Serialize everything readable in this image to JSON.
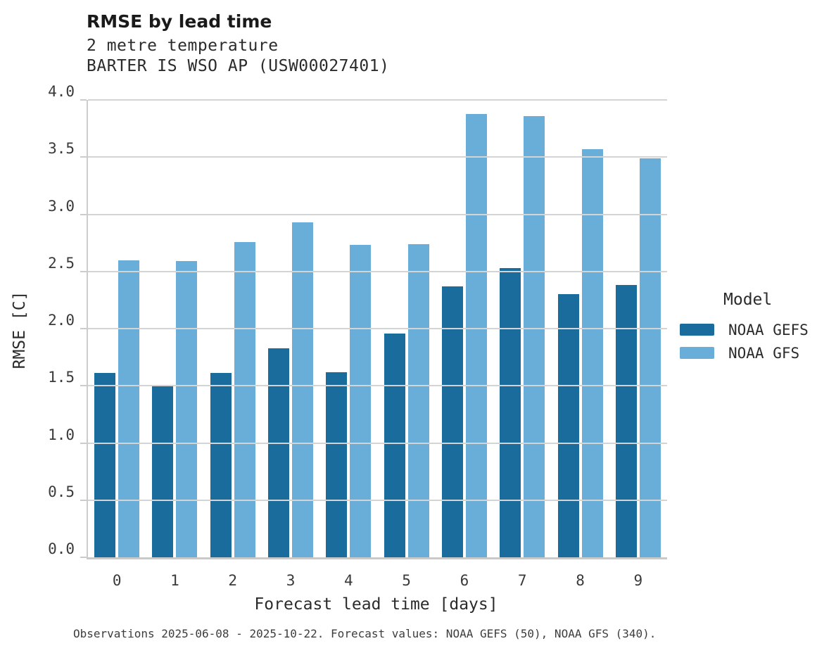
{
  "header": {
    "title": "RMSE by lead time",
    "subtitle_line1": "2 metre temperature",
    "subtitle_line2": "BARTER IS WSO AP (USW00027401)"
  },
  "legend": {
    "title": "Model",
    "items": [
      {
        "label": "NOAA GEFS",
        "color": "#1a6c9d"
      },
      {
        "label": "NOAA GFS",
        "color": "#69aed8"
      }
    ]
  },
  "footer": {
    "caption": "Observations 2025-06-08 - 2025-10-22. Forecast values: NOAA GEFS (50), NOAA GFS (340)."
  },
  "colors": {
    "gefs_dark_blue": "#1a6c9d",
    "gfs_light_blue": "#69aed8",
    "gridline": "#d4d4d4",
    "spine": "#cccccc",
    "title_text": "#1a1a1a",
    "tick_text": "#3a3a3a"
  },
  "chart_data": {
    "type": "bar",
    "title": "RMSE by lead time",
    "subtitle": [
      "2 metre temperature",
      "BARTER IS WSO AP (USW00027401)"
    ],
    "categories": [
      "0",
      "1",
      "2",
      "3",
      "4",
      "5",
      "6",
      "7",
      "8",
      "9"
    ],
    "series": [
      {
        "name": "NOAA GEFS",
        "color": "#1a6c9d",
        "values": [
          1.61,
          1.5,
          1.61,
          1.83,
          1.62,
          1.96,
          2.37,
          2.53,
          2.3,
          2.38
        ]
      },
      {
        "name": "NOAA GFS",
        "color": "#69aed8",
        "values": [
          2.6,
          2.59,
          2.76,
          2.93,
          2.73,
          2.74,
          3.88,
          3.86,
          3.57,
          3.49
        ]
      }
    ],
    "xlabel": "Forecast lead time [days]",
    "ylabel": "RMSE [C]",
    "ylim": [
      0.0,
      4.0
    ],
    "yticks": [
      0.0,
      0.5,
      1.0,
      1.5,
      2.0,
      2.5,
      3.0,
      3.5,
      4.0
    ],
    "grid": true,
    "legend_title": "Model",
    "legend_position": "right",
    "caption": "Observations 2025-06-08 - 2025-10-22. Forecast values: NOAA GEFS (50), NOAA GFS (340)."
  }
}
